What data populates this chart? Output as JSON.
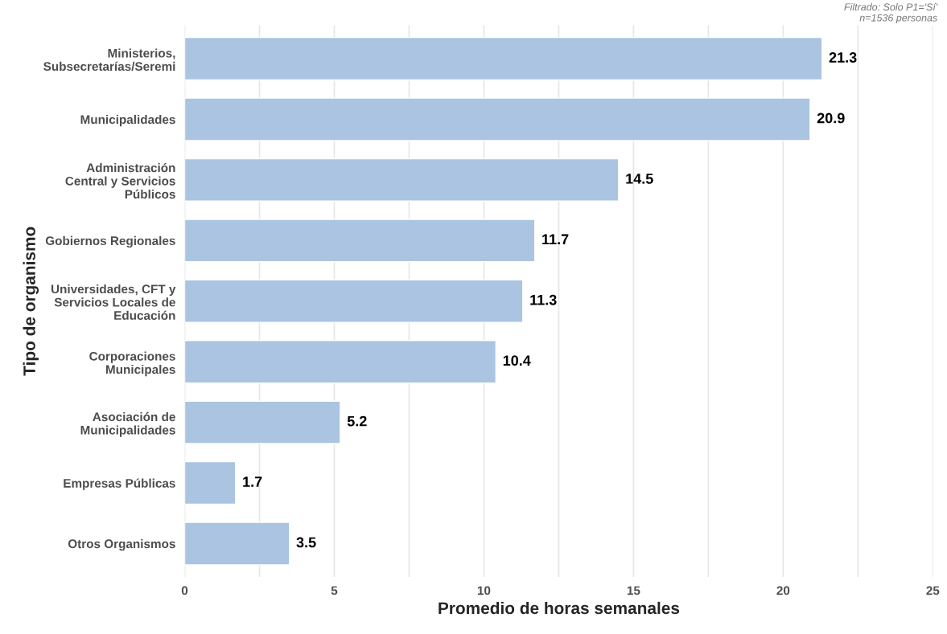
{
  "chart_data": {
    "type": "bar",
    "orientation": "horizontal",
    "categories": [
      "Ministerios,\nSubsecretarías/Seremi",
      "Municipalidades",
      "Administración\nCentral y Servicios\nPúblicos",
      "Gobiernos Regionales",
      "Universidades, CFT y\nServicios Locales de\nEducación",
      "Corporaciones\nMunicipales",
      "Asociación de\nMunicipalidades",
      "Empresas Públicas",
      "Otros Organismos"
    ],
    "values": [
      21.3,
      20.9,
      14.5,
      11.7,
      11.3,
      10.4,
      5.2,
      1.7,
      3.5
    ],
    "color": "#aac4e2",
    "xlabel": "Promedio de horas semanales",
    "ylabel": "Tipo de organismo",
    "xlim": [
      0,
      25
    ],
    "xticks": [
      0,
      {
        "value": 2.5,
        "label": null
      },
      5,
      {
        "value": 7.5,
        "label": null
      },
      10,
      {
        "value": 12.5,
        "label": null
      },
      15,
      {
        "value": 17.5,
        "label": null
      },
      20,
      {
        "value": 22.5,
        "label": null
      },
      25
    ],
    "grid": "x",
    "data_labels": true,
    "annotations": [
      "Filtrado: Solo P1='Sí'\nn=1536 personas"
    ]
  }
}
